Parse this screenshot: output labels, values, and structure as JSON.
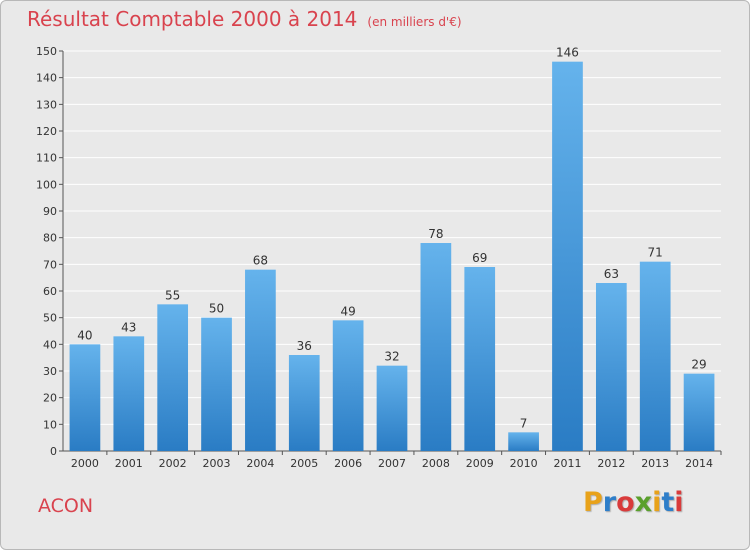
{
  "title": "Résultat Comptable 2000 à 2014",
  "subtitle": "(en milliers d'€)",
  "commune": "ACON",
  "logo": {
    "text": "Proxiti",
    "colors": [
      "#e8a21a",
      "#2e7ec9",
      "#d93b3b",
      "#5aa02c",
      "#e8a21a",
      "#2e7ec9",
      "#d93b3b"
    ]
  },
  "colors": {
    "title": "#d9434e",
    "bar": "#3d94dc",
    "bar_light": "#65b3ec",
    "background": "#e9e9e9",
    "grid": "#ffffff"
  },
  "chart_data": {
    "type": "bar",
    "categories": [
      "2000",
      "2001",
      "2002",
      "2003",
      "2004",
      "2005",
      "2006",
      "2007",
      "2008",
      "2009",
      "2010",
      "2011",
      "2012",
      "2013",
      "2014"
    ],
    "values": [
      40,
      43,
      55,
      50,
      68,
      36,
      49,
      32,
      78,
      69,
      7,
      146,
      63,
      71,
      29
    ],
    "ylim": [
      0,
      150
    ],
    "yticks": [
      0,
      10,
      20,
      30,
      40,
      50,
      60,
      70,
      80,
      90,
      100,
      110,
      120,
      130,
      140,
      150
    ],
    "grid": true,
    "data_labels": true
  }
}
